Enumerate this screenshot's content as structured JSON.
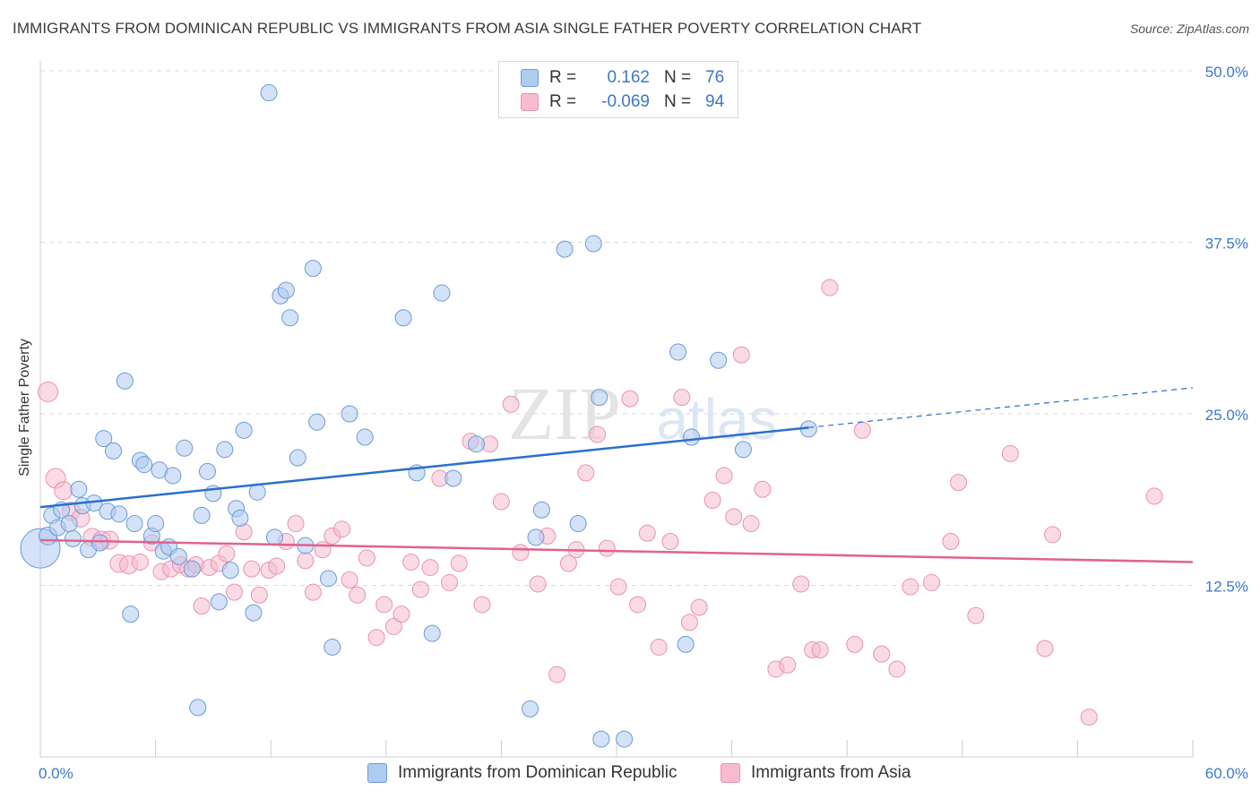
{
  "title": "IMMIGRANTS FROM DOMINICAN REPUBLIC VS IMMIGRANTS FROM ASIA SINGLE FATHER POVERTY CORRELATION CHART",
  "source": "Source: ZipAtlas.com",
  "watermark": {
    "zip": "ZIP",
    "atlas": "atlas"
  },
  "legend": {
    "rows": [
      {
        "r_label": "R =",
        "r_value": "0.162",
        "n_label": "N =",
        "n_value": "76"
      },
      {
        "r_label": "R =",
        "r_value": "-0.069",
        "n_label": "N =",
        "n_value": "94"
      }
    ]
  },
  "chart_data": {
    "type": "scatter",
    "title": "IMMIGRANTS FROM DOMINICAN REPUBLIC VS IMMIGRANTS FROM ASIA SINGLE FATHER POVERTY CORRELATION CHART",
    "xlabel": "",
    "ylabel": "Single Father Poverty",
    "xlim": [
      0,
      60
    ],
    "ylim": [
      0,
      50
    ],
    "x_tick_labels": [
      "0.0%",
      "60.0%"
    ],
    "y_ticks": [
      12.5,
      25.0,
      37.5,
      50.0
    ],
    "y_tick_labels": [
      "12.5%",
      "25.0%",
      "37.5%",
      "50.0%"
    ],
    "grid": "horizontal dashed",
    "legend_position": "bottom",
    "colors": {
      "series1_fill": "#aecbf0",
      "series1_stroke": "#6d9ad8",
      "series1_line": "#2a6fd0",
      "series2_fill": "#f6bccd",
      "series2_stroke": "#ea93b0",
      "series2_line": "#e0628e",
      "tick_label": "#3b78c8"
    },
    "series": [
      {
        "name": "Immigrants from Dominican Republic",
        "r": 0.162,
        "n": 76,
        "trend": {
          "x0": 0,
          "y0": 18.2,
          "x1": 40,
          "y1": 24.0,
          "dashed_to_x": 60,
          "dashed_to_y": 26.9
        },
        "points": [
          [
            0.0,
            15.2,
            22
          ],
          [
            0.4,
            16.1,
            10
          ],
          [
            0.6,
            17.6,
            9
          ],
          [
            0.9,
            16.7,
            9
          ],
          [
            1.1,
            18.0,
            9
          ],
          [
            1.5,
            17.0,
            9
          ],
          [
            1.7,
            15.9,
            9
          ],
          [
            2.0,
            19.5,
            9
          ],
          [
            2.2,
            18.3,
            9
          ],
          [
            2.5,
            15.1,
            9
          ],
          [
            2.8,
            18.5,
            9
          ],
          [
            3.1,
            15.6,
            9
          ],
          [
            3.3,
            23.2,
            9
          ],
          [
            3.5,
            17.9,
            9
          ],
          [
            3.8,
            22.3,
            9
          ],
          [
            4.1,
            17.7,
            9
          ],
          [
            4.4,
            27.4,
            9
          ],
          [
            4.7,
            10.4,
            9
          ],
          [
            4.9,
            17.0,
            9
          ],
          [
            5.2,
            21.6,
            9
          ],
          [
            5.4,
            21.3,
            9
          ],
          [
            5.8,
            16.1,
            9
          ],
          [
            6.0,
            17.0,
            9
          ],
          [
            6.2,
            20.9,
            9
          ],
          [
            6.4,
            15.0,
            9
          ],
          [
            6.7,
            15.3,
            9
          ],
          [
            6.9,
            20.5,
            9
          ],
          [
            7.2,
            14.6,
            9
          ],
          [
            7.5,
            22.5,
            9
          ],
          [
            7.9,
            13.7,
            9
          ],
          [
            8.2,
            3.6,
            9
          ],
          [
            8.4,
            17.6,
            9
          ],
          [
            8.7,
            20.8,
            9
          ],
          [
            9.0,
            19.2,
            9
          ],
          [
            9.3,
            11.3,
            9
          ],
          [
            9.6,
            22.4,
            9
          ],
          [
            9.9,
            13.6,
            9
          ],
          [
            10.2,
            18.1,
            9
          ],
          [
            10.4,
            17.4,
            9
          ],
          [
            10.6,
            23.8,
            9
          ],
          [
            11.1,
            10.5,
            9
          ],
          [
            11.3,
            19.3,
            9
          ],
          [
            11.9,
            48.4,
            9
          ],
          [
            12.2,
            16.0,
            9
          ],
          [
            12.5,
            33.6,
            9
          ],
          [
            12.8,
            34.0,
            9
          ],
          [
            13.0,
            32.0,
            9
          ],
          [
            13.4,
            21.8,
            9
          ],
          [
            13.8,
            15.4,
            9
          ],
          [
            14.2,
            35.6,
            9
          ],
          [
            14.4,
            24.4,
            9
          ],
          [
            15.0,
            13.0,
            9
          ],
          [
            15.2,
            8.0,
            9
          ],
          [
            16.1,
            25.0,
            9
          ],
          [
            16.9,
            23.3,
            9
          ],
          [
            18.9,
            32.0,
            9
          ],
          [
            19.6,
            20.7,
            9
          ],
          [
            20.4,
            9.0,
            9
          ],
          [
            20.9,
            33.8,
            9
          ],
          [
            21.5,
            20.3,
            9
          ],
          [
            22.7,
            22.8,
            9
          ],
          [
            25.5,
            3.5,
            9
          ],
          [
            25.8,
            16.0,
            9
          ],
          [
            26.1,
            18.0,
            9
          ],
          [
            27.3,
            37.0,
            9
          ],
          [
            28.0,
            17.0,
            9
          ],
          [
            28.8,
            37.4,
            9
          ],
          [
            29.1,
            26.2,
            9
          ],
          [
            29.2,
            1.3,
            9
          ],
          [
            30.4,
            1.3,
            9
          ],
          [
            33.2,
            29.5,
            9
          ],
          [
            33.6,
            8.2,
            9
          ],
          [
            33.9,
            23.3,
            9
          ],
          [
            35.3,
            28.9,
            9
          ],
          [
            36.6,
            22.4,
            9
          ],
          [
            40.0,
            23.9,
            9
          ]
        ]
      },
      {
        "name": "Immigrants from Asia",
        "r": -0.069,
        "n": 94,
        "trend": {
          "x0": 0,
          "y0": 15.8,
          "x1": 60,
          "y1": 14.2
        },
        "points": [
          [
            0.4,
            26.6,
            11
          ],
          [
            0.8,
            20.3,
            11
          ],
          [
            1.2,
            19.4,
            10
          ],
          [
            1.6,
            17.9,
            10
          ],
          [
            2.1,
            17.4,
            10
          ],
          [
            2.7,
            16.0,
            10
          ],
          [
            3.2,
            15.8,
            10
          ],
          [
            3.6,
            15.8,
            10
          ],
          [
            4.1,
            14.1,
            10
          ],
          [
            4.6,
            14.0,
            10
          ],
          [
            5.2,
            14.2,
            9
          ],
          [
            5.8,
            15.6,
            9
          ],
          [
            6.3,
            13.5,
            9
          ],
          [
            6.8,
            13.7,
            9
          ],
          [
            7.3,
            14.0,
            9
          ],
          [
            7.7,
            13.7,
            9
          ],
          [
            8.1,
            14.0,
            9
          ],
          [
            8.4,
            11.0,
            9
          ],
          [
            8.8,
            13.8,
            9
          ],
          [
            9.3,
            14.1,
            9
          ],
          [
            9.7,
            14.8,
            9
          ],
          [
            10.1,
            12.0,
            9
          ],
          [
            10.6,
            16.4,
            9
          ],
          [
            11.0,
            13.7,
            9
          ],
          [
            11.4,
            11.8,
            9
          ],
          [
            11.9,
            13.6,
            9
          ],
          [
            12.3,
            13.9,
            9
          ],
          [
            12.8,
            15.7,
            9
          ],
          [
            13.3,
            17.0,
            9
          ],
          [
            13.8,
            14.3,
            9
          ],
          [
            14.2,
            12.0,
            9
          ],
          [
            14.7,
            15.1,
            9
          ],
          [
            15.2,
            16.1,
            9
          ],
          [
            15.7,
            16.6,
            9
          ],
          [
            16.1,
            12.9,
            9
          ],
          [
            16.5,
            11.8,
            9
          ],
          [
            17.0,
            14.5,
            9
          ],
          [
            17.5,
            8.7,
            9
          ],
          [
            17.9,
            11.1,
            9
          ],
          [
            18.4,
            9.5,
            9
          ],
          [
            18.8,
            10.4,
            9
          ],
          [
            19.3,
            14.2,
            9
          ],
          [
            19.8,
            12.2,
            9
          ],
          [
            20.3,
            13.8,
            9
          ],
          [
            20.8,
            20.3,
            9
          ],
          [
            21.3,
            12.7,
            9
          ],
          [
            21.8,
            14.1,
            9
          ],
          [
            22.4,
            23.0,
            9
          ],
          [
            23.0,
            11.1,
            9
          ],
          [
            23.4,
            22.8,
            9
          ],
          [
            24.0,
            18.6,
            9
          ],
          [
            24.5,
            25.7,
            9
          ],
          [
            25.0,
            14.9,
            9
          ],
          [
            25.9,
            12.6,
            9
          ],
          [
            26.4,
            16.1,
            9
          ],
          [
            26.9,
            6.0,
            9
          ],
          [
            27.5,
            14.1,
            9
          ],
          [
            27.9,
            15.1,
            9
          ],
          [
            28.4,
            20.7,
            9
          ],
          [
            29.0,
            23.5,
            9
          ],
          [
            29.5,
            15.2,
            9
          ],
          [
            30.1,
            12.4,
            9
          ],
          [
            30.7,
            26.1,
            9
          ],
          [
            31.1,
            11.1,
            9
          ],
          [
            31.6,
            16.3,
            9
          ],
          [
            32.2,
            8.0,
            9
          ],
          [
            32.8,
            15.7,
            9
          ],
          [
            33.4,
            26.2,
            9
          ],
          [
            33.8,
            9.8,
            9
          ],
          [
            34.3,
            10.9,
            9
          ],
          [
            35.0,
            18.7,
            9
          ],
          [
            35.6,
            20.5,
            9
          ],
          [
            36.1,
            17.5,
            9
          ],
          [
            36.5,
            29.3,
            9
          ],
          [
            37.0,
            17.0,
            9
          ],
          [
            37.6,
            19.5,
            9
          ],
          [
            38.3,
            6.4,
            9
          ],
          [
            38.9,
            6.7,
            9
          ],
          [
            39.6,
            12.6,
            9
          ],
          [
            40.2,
            7.8,
            9
          ],
          [
            40.6,
            7.8,
            9
          ],
          [
            41.1,
            34.2,
            9
          ],
          [
            42.4,
            8.2,
            9
          ],
          [
            42.8,
            23.8,
            9
          ],
          [
            43.8,
            7.5,
            9
          ],
          [
            44.6,
            6.4,
            9
          ],
          [
            45.3,
            12.4,
            9
          ],
          [
            46.4,
            12.7,
            9
          ],
          [
            47.4,
            15.7,
            9
          ],
          [
            47.8,
            20.0,
            9
          ],
          [
            48.7,
            10.3,
            9
          ],
          [
            50.5,
            22.1,
            9
          ],
          [
            52.3,
            7.9,
            9
          ],
          [
            52.7,
            16.2,
            9
          ],
          [
            54.6,
            2.9,
            9
          ],
          [
            58.0,
            19.0,
            9
          ]
        ]
      }
    ]
  }
}
